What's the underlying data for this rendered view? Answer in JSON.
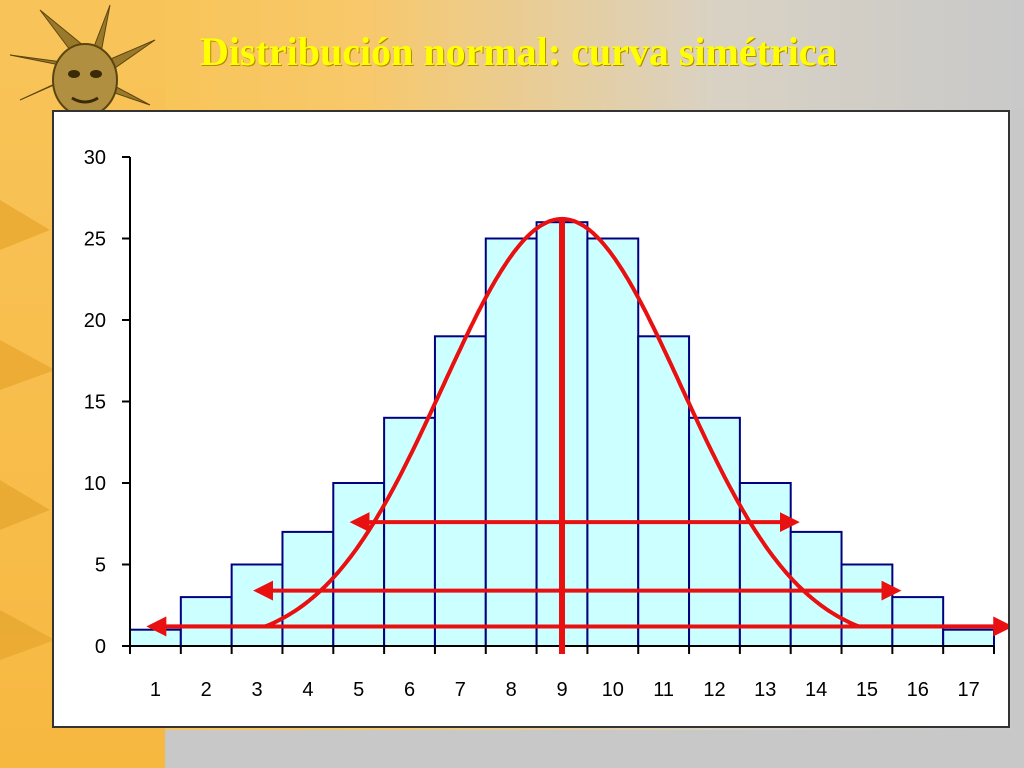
{
  "slide": {
    "title": "Distribución normal: curva simétrica"
  },
  "colors": {
    "bar_fill": "#ccffff",
    "bar_stroke": "#000080",
    "curve": "#e81010",
    "title": "#ffff00"
  },
  "chart_data": {
    "type": "bar",
    "title": "",
    "xlabel": "",
    "ylabel": "",
    "categories": [
      "1",
      "2",
      "3",
      "4",
      "5",
      "6",
      "7",
      "8",
      "9",
      "10",
      "11",
      "12",
      "13",
      "14",
      "15",
      "16",
      "17"
    ],
    "values": [
      1,
      3,
      5,
      7,
      10,
      14,
      19,
      25,
      26,
      25,
      19,
      14,
      10,
      7,
      5,
      3,
      1
    ],
    "ylim": [
      0,
      30
    ],
    "yticks": [
      "0",
      "5",
      "10",
      "15",
      "20",
      "25",
      "30"
    ],
    "grid": false,
    "legend": "none",
    "overlays": {
      "curve": {
        "type": "normal-curve",
        "peak": 26.2,
        "center": "9"
      },
      "center_line": {
        "x": "9"
      },
      "arrows": [
        {
          "y": 7.6,
          "from": "4.9",
          "to": "13.6"
        },
        {
          "y": 3.4,
          "from": "3.0",
          "to": "15.6"
        },
        {
          "y": 1.2,
          "from": "0.9",
          "to": "17.8"
        }
      ]
    }
  }
}
